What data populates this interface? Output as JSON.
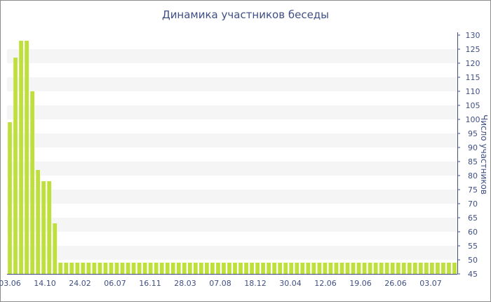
{
  "chart_data": {
    "type": "bar",
    "title": "Динамика участников беседы",
    "ylabel": "Число участников",
    "xlabel": "",
    "ylim": [
      45,
      130
    ],
    "y_ticks": [
      45,
      50,
      55,
      60,
      65,
      70,
      75,
      80,
      85,
      90,
      95,
      100,
      105,
      110,
      115,
      120,
      125,
      130
    ],
    "y_axis_side": "right",
    "grid": "alternating horizontal bands",
    "x_tick_labels": [
      "03.06",
      "14.10",
      "24.02",
      "06.07",
      "16.11",
      "28.03",
      "07.08",
      "18.12",
      "30.04",
      "12.06",
      "19.06",
      "26.06",
      "03.07"
    ],
    "values": [
      99,
      122,
      128,
      128,
      110,
      82,
      78,
      78,
      63,
      49,
      49,
      49,
      49,
      49,
      49,
      49,
      49,
      49,
      49,
      49,
      49,
      49,
      49,
      49,
      49,
      49,
      49,
      49,
      49,
      49,
      49,
      49,
      49,
      49,
      49,
      49,
      49,
      49,
      49,
      49,
      49,
      49,
      49,
      49,
      49,
      49,
      49,
      49,
      49,
      49,
      49,
      49,
      49,
      49,
      49,
      49,
      49,
      49,
      49,
      49,
      49,
      49,
      49,
      49,
      49,
      49,
      49,
      49,
      49,
      49,
      49,
      49,
      49,
      49,
      49,
      49,
      49,
      49,
      49,
      49
    ],
    "bar_color": "#bfe03a",
    "band_color": "#f5f5f5",
    "text_color": "#3f4f84"
  }
}
